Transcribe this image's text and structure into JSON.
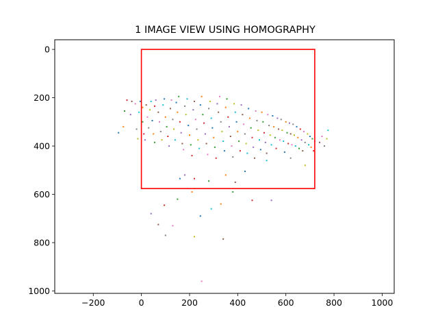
{
  "chart_data": {
    "type": "scatter",
    "title": "1 IMAGE VIEW USING HOMOGRAPHY",
    "xlabel": "",
    "ylabel": "",
    "xlim": [
      -360,
      1050
    ],
    "ylim": [
      1010,
      -40
    ],
    "y_inverted": true,
    "grid": false,
    "xticks": [
      -200,
      0,
      200,
      400,
      600,
      800,
      1000
    ],
    "yticks": [
      0,
      200,
      400,
      600,
      800,
      1000
    ],
    "image_boundary": {
      "color": "#ff0000",
      "corners": [
        [
          0,
          0
        ],
        [
          720,
          0
        ],
        [
          720,
          576
        ],
        [
          0,
          576
        ]
      ]
    },
    "marker_colors": [
      "#1f77b4",
      "#ff7f0e",
      "#2ca02c",
      "#d62728",
      "#9467bd",
      "#8c564b",
      "#e377c2",
      "#7f7f7f",
      "#bcbd22",
      "#17becf"
    ],
    "points": [
      [
        -95,
        345
      ],
      [
        -75,
        320
      ],
      [
        -70,
        255
      ],
      [
        -60,
        210
      ],
      [
        -45,
        270
      ],
      [
        -40,
        215
      ],
      [
        -25,
        225
      ],
      [
        -20,
        330
      ],
      [
        -15,
        370
      ],
      [
        -10,
        260
      ],
      [
        -5,
        215
      ],
      [
        5,
        240
      ],
      [
        5,
        300
      ],
      [
        10,
        350
      ],
      [
        15,
        375
      ],
      [
        20,
        230
      ],
      [
        25,
        280
      ],
      [
        30,
        325
      ],
      [
        35,
        250
      ],
      [
        40,
        215
      ],
      [
        45,
        295
      ],
      [
        50,
        350
      ],
      [
        55,
        385
      ],
      [
        55,
        235
      ],
      [
        60,
        210
      ],
      [
        70,
        260
      ],
      [
        75,
        300
      ],
      [
        80,
        340
      ],
      [
        85,
        375
      ],
      [
        90,
        230
      ],
      [
        95,
        205
      ],
      [
        100,
        280
      ],
      [
        105,
        320
      ],
      [
        110,
        360
      ],
      [
        115,
        400
      ],
      [
        120,
        245
      ],
      [
        125,
        210
      ],
      [
        130,
        290
      ],
      [
        135,
        330
      ],
      [
        140,
        375
      ],
      [
        145,
        220
      ],
      [
        150,
        260
      ],
      [
        155,
        195
      ],
      [
        160,
        300
      ],
      [
        165,
        345
      ],
      [
        170,
        390
      ],
      [
        175,
        415
      ],
      [
        180,
        235
      ],
      [
        185,
        270
      ],
      [
        190,
        205
      ],
      [
        195,
        315
      ],
      [
        200,
        355
      ],
      [
        205,
        395
      ],
      [
        210,
        440
      ],
      [
        215,
        250
      ],
      [
        220,
        215
      ],
      [
        225,
        290
      ],
      [
        230,
        330
      ],
      [
        235,
        375
      ],
      [
        240,
        410
      ],
      [
        245,
        230
      ],
      [
        250,
        195
      ],
      [
        255,
        270
      ],
      [
        260,
        305
      ],
      [
        265,
        350
      ],
      [
        270,
        390
      ],
      [
        275,
        435
      ],
      [
        280,
        245
      ],
      [
        285,
        215
      ],
      [
        290,
        285
      ],
      [
        295,
        325
      ],
      [
        300,
        365
      ],
      [
        305,
        405
      ],
      [
        310,
        450
      ],
      [
        315,
        225
      ],
      [
        320,
        260
      ],
      [
        325,
        195
      ],
      [
        330,
        300
      ],
      [
        335,
        340
      ],
      [
        340,
        380
      ],
      [
        345,
        420
      ],
      [
        350,
        240
      ],
      [
        355,
        205
      ],
      [
        360,
        280
      ],
      [
        365,
        320
      ],
      [
        370,
        360
      ],
      [
        375,
        400
      ],
      [
        380,
        445
      ],
      [
        385,
        225
      ],
      [
        390,
        260
      ],
      [
        395,
        300
      ],
      [
        400,
        340
      ],
      [
        405,
        380
      ],
      [
        410,
        420
      ],
      [
        415,
        230
      ],
      [
        420,
        270
      ],
      [
        425,
        310
      ],
      [
        430,
        350
      ],
      [
        435,
        390
      ],
      [
        440,
        430
      ],
      [
        445,
        245
      ],
      [
        450,
        285
      ],
      [
        455,
        325
      ],
      [
        460,
        365
      ],
      [
        465,
        405
      ],
      [
        470,
        450
      ],
      [
        475,
        255
      ],
      [
        480,
        295
      ],
      [
        485,
        335
      ],
      [
        490,
        375
      ],
      [
        495,
        415
      ],
      [
        500,
        260
      ],
      [
        505,
        300
      ],
      [
        510,
        345
      ],
      [
        515,
        385
      ],
      [
        520,
        430
      ],
      [
        525,
        270
      ],
      [
        530,
        315
      ],
      [
        535,
        355
      ],
      [
        540,
        395
      ],
      [
        545,
        275
      ],
      [
        550,
        320
      ],
      [
        555,
        365
      ],
      [
        560,
        410
      ],
      [
        565,
        285
      ],
      [
        570,
        330
      ],
      [
        575,
        375
      ],
      [
        580,
        290
      ],
      [
        585,
        335
      ],
      [
        590,
        380
      ],
      [
        595,
        425
      ],
      [
        600,
        300
      ],
      [
        605,
        345
      ],
      [
        610,
        390
      ],
      [
        615,
        305
      ],
      [
        620,
        350
      ],
      [
        625,
        395
      ],
      [
        630,
        310
      ],
      [
        635,
        355
      ],
      [
        640,
        400
      ],
      [
        645,
        320
      ],
      [
        650,
        365
      ],
      [
        655,
        410
      ],
      [
        660,
        330
      ],
      [
        665,
        375
      ],
      [
        670,
        420
      ],
      [
        675,
        340
      ],
      [
        680,
        385
      ],
      [
        690,
        350
      ],
      [
        695,
        395
      ],
      [
        700,
        360
      ],
      [
        705,
        405
      ],
      [
        710,
        370
      ],
      [
        715,
        420
      ],
      [
        720,
        380
      ],
      [
        740,
        385
      ],
      [
        750,
        360
      ],
      [
        760,
        400
      ],
      [
        770,
        370
      ],
      [
        775,
        335
      ],
      [
        160,
        535
      ],
      [
        210,
        590
      ],
      [
        150,
        620
      ],
      [
        95,
        645
      ],
      [
        40,
        680
      ],
      [
        70,
        725
      ],
      [
        130,
        730
      ],
      [
        100,
        770
      ],
      [
        220,
        775
      ],
      [
        290,
        660
      ],
      [
        245,
        690
      ],
      [
        330,
        640
      ],
      [
        380,
        590
      ],
      [
        460,
        625
      ],
      [
        540,
        625
      ],
      [
        340,
        785
      ],
      [
        250,
        960
      ],
      [
        620,
        450
      ],
      [
        680,
        480
      ],
      [
        520,
        460
      ],
      [
        430,
        505
      ],
      [
        350,
        520
      ],
      [
        280,
        545
      ],
      [
        220,
        535
      ],
      [
        180,
        520
      ],
      [
        390,
        550
      ]
    ]
  }
}
